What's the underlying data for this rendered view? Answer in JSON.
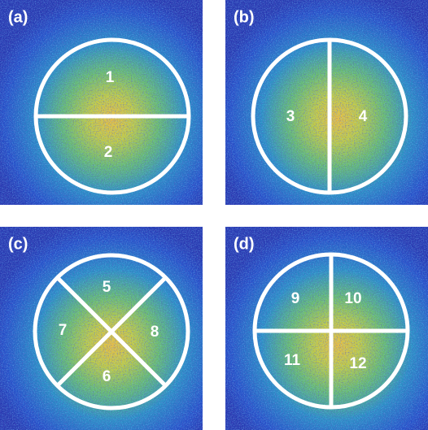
{
  "panels": [
    {
      "label": "(a)",
      "regions": [
        "1",
        "2"
      ]
    },
    {
      "label": "(b)",
      "regions": [
        "3",
        "4"
      ]
    },
    {
      "label": "(c)",
      "regions": [
        "5",
        "7",
        "8",
        "6"
      ]
    },
    {
      "label": "(d)",
      "regions": [
        "9",
        "10",
        "11",
        "12"
      ]
    }
  ]
}
